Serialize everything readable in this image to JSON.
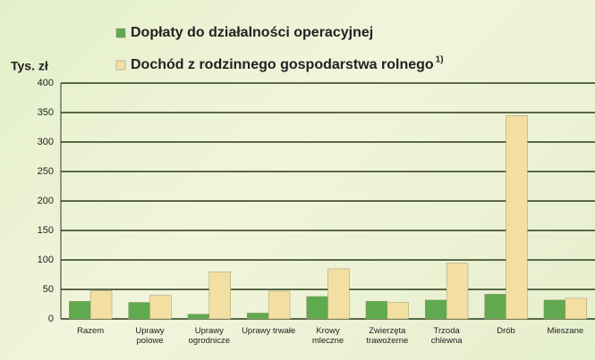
{
  "chart_data": {
    "type": "bar",
    "y_label": "Tys. zł",
    "footnote_mark": "1)",
    "categories": [
      "Razem",
      "Uprawy polowe",
      "Uprawy ogrodnicze",
      "Uprawy trwałe",
      "Krowy mleczne",
      "Zwierzęta trawożerne",
      "Trzoda chlewna",
      "Drób",
      "Mieszane"
    ],
    "series": [
      {
        "name": "Dopłaty do działalności operacyjnej",
        "color": "#5faa4e",
        "values": [
          30,
          28,
          8,
          10,
          38,
          30,
          32,
          42,
          32
        ]
      },
      {
        "name": "Dochód z rodzinnego gospodarstwa rolnego",
        "color": "#f3dfa2",
        "values": [
          48,
          40,
          80,
          47,
          85,
          28,
          95,
          345,
          35
        ]
      }
    ],
    "ylim": [
      0,
      400
    ],
    "yticks": [
      0,
      50,
      100,
      150,
      200,
      250,
      300,
      350,
      400
    ],
    "grid": true
  }
}
